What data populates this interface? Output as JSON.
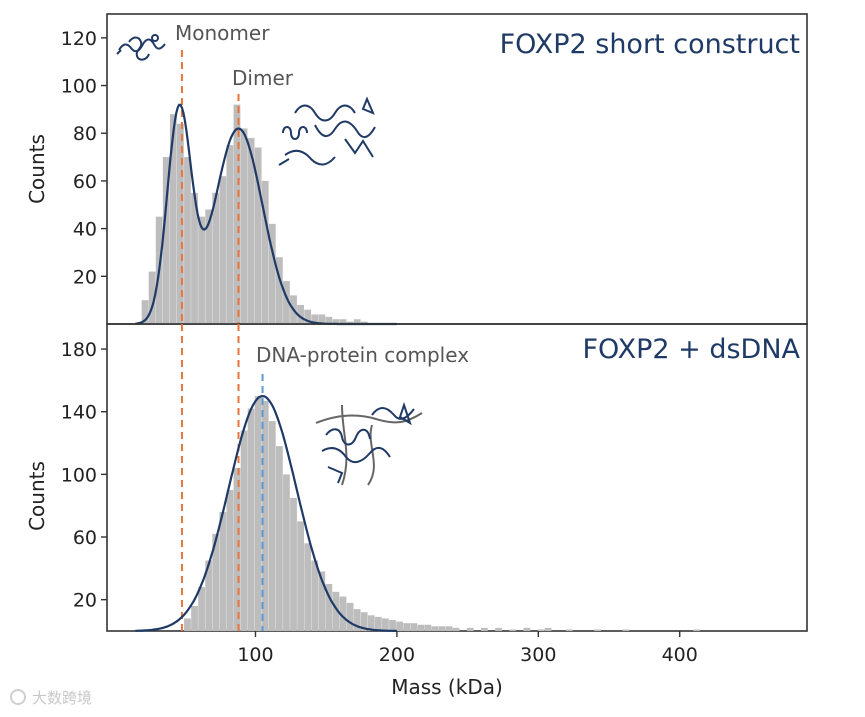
{
  "colors": {
    "bars": "#bdbdbd",
    "fit": "#1f3a66",
    "monomer_line": "#e8763a",
    "dimer_line": "#e8763a",
    "complex_line": "#5b9bd5",
    "title": "#1f3a66"
  },
  "chart_data": [
    {
      "type": "bar",
      "title": "FOXP2 short construct",
      "xlabel": "Mass (kDa)",
      "ylabel": "Counts",
      "xlim": [
        -5,
        490
      ],
      "ylim": [
        0,
        130
      ],
      "yticks": [
        20,
        40,
        60,
        80,
        100,
        120
      ],
      "bin_width": 5,
      "bins": [
        {
          "x": 22,
          "y": 10
        },
        {
          "x": 27,
          "y": 22
        },
        {
          "x": 32,
          "y": 45
        },
        {
          "x": 37,
          "y": 70
        },
        {
          "x": 42,
          "y": 88
        },
        {
          "x": 47,
          "y": 84
        },
        {
          "x": 52,
          "y": 70
        },
        {
          "x": 57,
          "y": 55
        },
        {
          "x": 62,
          "y": 45
        },
        {
          "x": 67,
          "y": 48
        },
        {
          "x": 72,
          "y": 55
        },
        {
          "x": 77,
          "y": 62
        },
        {
          "x": 82,
          "y": 75
        },
        {
          "x": 87,
          "y": 92
        },
        {
          "x": 92,
          "y": 82
        },
        {
          "x": 97,
          "y": 78
        },
        {
          "x": 102,
          "y": 74
        },
        {
          "x": 107,
          "y": 60
        },
        {
          "x": 112,
          "y": 42
        },
        {
          "x": 117,
          "y": 28
        },
        {
          "x": 122,
          "y": 18
        },
        {
          "x": 127,
          "y": 12
        },
        {
          "x": 132,
          "y": 8
        },
        {
          "x": 137,
          "y": 6
        },
        {
          "x": 142,
          "y": 4
        },
        {
          "x": 147,
          "y": 4
        },
        {
          "x": 152,
          "y": 3
        },
        {
          "x": 157,
          "y": 2
        },
        {
          "x": 162,
          "y": 2
        },
        {
          "x": 167,
          "y": 1
        },
        {
          "x": 172,
          "y": 2
        },
        {
          "x": 177,
          "y": 1
        }
      ],
      "fit": {
        "components": [
          {
            "mu": 46,
            "sigma": 8.5,
            "amp": 88
          },
          {
            "mu": 88,
            "sigma": 17,
            "amp": 82
          }
        ]
      },
      "markers": [
        {
          "name": "monomer",
          "x": 48,
          "label": "Monomer"
        },
        {
          "name": "dimer",
          "x": 88,
          "label": "Dimer"
        }
      ]
    },
    {
      "type": "bar",
      "title": "FOXP2 + dsDNA",
      "xlabel": "Mass (kDa)",
      "ylabel": "Counts",
      "xlim": [
        -5,
        490
      ],
      "ylim": [
        0,
        196
      ],
      "yticks": [
        20,
        60,
        100,
        140,
        180
      ],
      "xticks": [
        100,
        200,
        300,
        400
      ],
      "bin_width": 5,
      "bins": [
        {
          "x": 52,
          "y": 8
        },
        {
          "x": 57,
          "y": 16
        },
        {
          "x": 62,
          "y": 28
        },
        {
          "x": 67,
          "y": 45
        },
        {
          "x": 72,
          "y": 62
        },
        {
          "x": 77,
          "y": 76
        },
        {
          "x": 82,
          "y": 90
        },
        {
          "x": 87,
          "y": 104
        },
        {
          "x": 92,
          "y": 128
        },
        {
          "x": 97,
          "y": 142
        },
        {
          "x": 102,
          "y": 150
        },
        {
          "x": 107,
          "y": 147
        },
        {
          "x": 112,
          "y": 134
        },
        {
          "x": 117,
          "y": 118
        },
        {
          "x": 122,
          "y": 100
        },
        {
          "x": 127,
          "y": 85
        },
        {
          "x": 132,
          "y": 70
        },
        {
          "x": 137,
          "y": 56
        },
        {
          "x": 142,
          "y": 45
        },
        {
          "x": 147,
          "y": 38
        },
        {
          "x": 152,
          "y": 30
        },
        {
          "x": 157,
          "y": 25
        },
        {
          "x": 162,
          "y": 22
        },
        {
          "x": 167,
          "y": 18
        },
        {
          "x": 172,
          "y": 14
        },
        {
          "x": 177,
          "y": 12
        },
        {
          "x": 182,
          "y": 10
        },
        {
          "x": 187,
          "y": 9
        },
        {
          "x": 192,
          "y": 8
        },
        {
          "x": 197,
          "y": 7
        },
        {
          "x": 202,
          "y": 6
        },
        {
          "x": 207,
          "y": 5
        },
        {
          "x": 212,
          "y": 5
        },
        {
          "x": 217,
          "y": 4
        },
        {
          "x": 222,
          "y": 4
        },
        {
          "x": 227,
          "y": 3
        },
        {
          "x": 232,
          "y": 3
        },
        {
          "x": 237,
          "y": 3
        },
        {
          "x": 242,
          "y": 2
        },
        {
          "x": 252,
          "y": 2
        },
        {
          "x": 262,
          "y": 2
        },
        {
          "x": 272,
          "y": 2
        },
        {
          "x": 282,
          "y": 1
        },
        {
          "x": 292,
          "y": 2
        },
        {
          "x": 302,
          "y": 1
        },
        {
          "x": 307,
          "y": 2
        },
        {
          "x": 322,
          "y": 1
        },
        {
          "x": 342,
          "y": 1
        },
        {
          "x": 362,
          "y": 1
        },
        {
          "x": 412,
          "y": 1
        }
      ],
      "fit": {
        "components": [
          {
            "mu": 105,
            "sigma": 24,
            "amp": 150
          }
        ]
      },
      "markers": [
        {
          "name": "monomer",
          "x": 48
        },
        {
          "name": "dimer",
          "x": 88
        },
        {
          "name": "complex",
          "x": 105,
          "label": "DNA-protein complex"
        }
      ]
    }
  ],
  "watermark_text": "大数跨境"
}
